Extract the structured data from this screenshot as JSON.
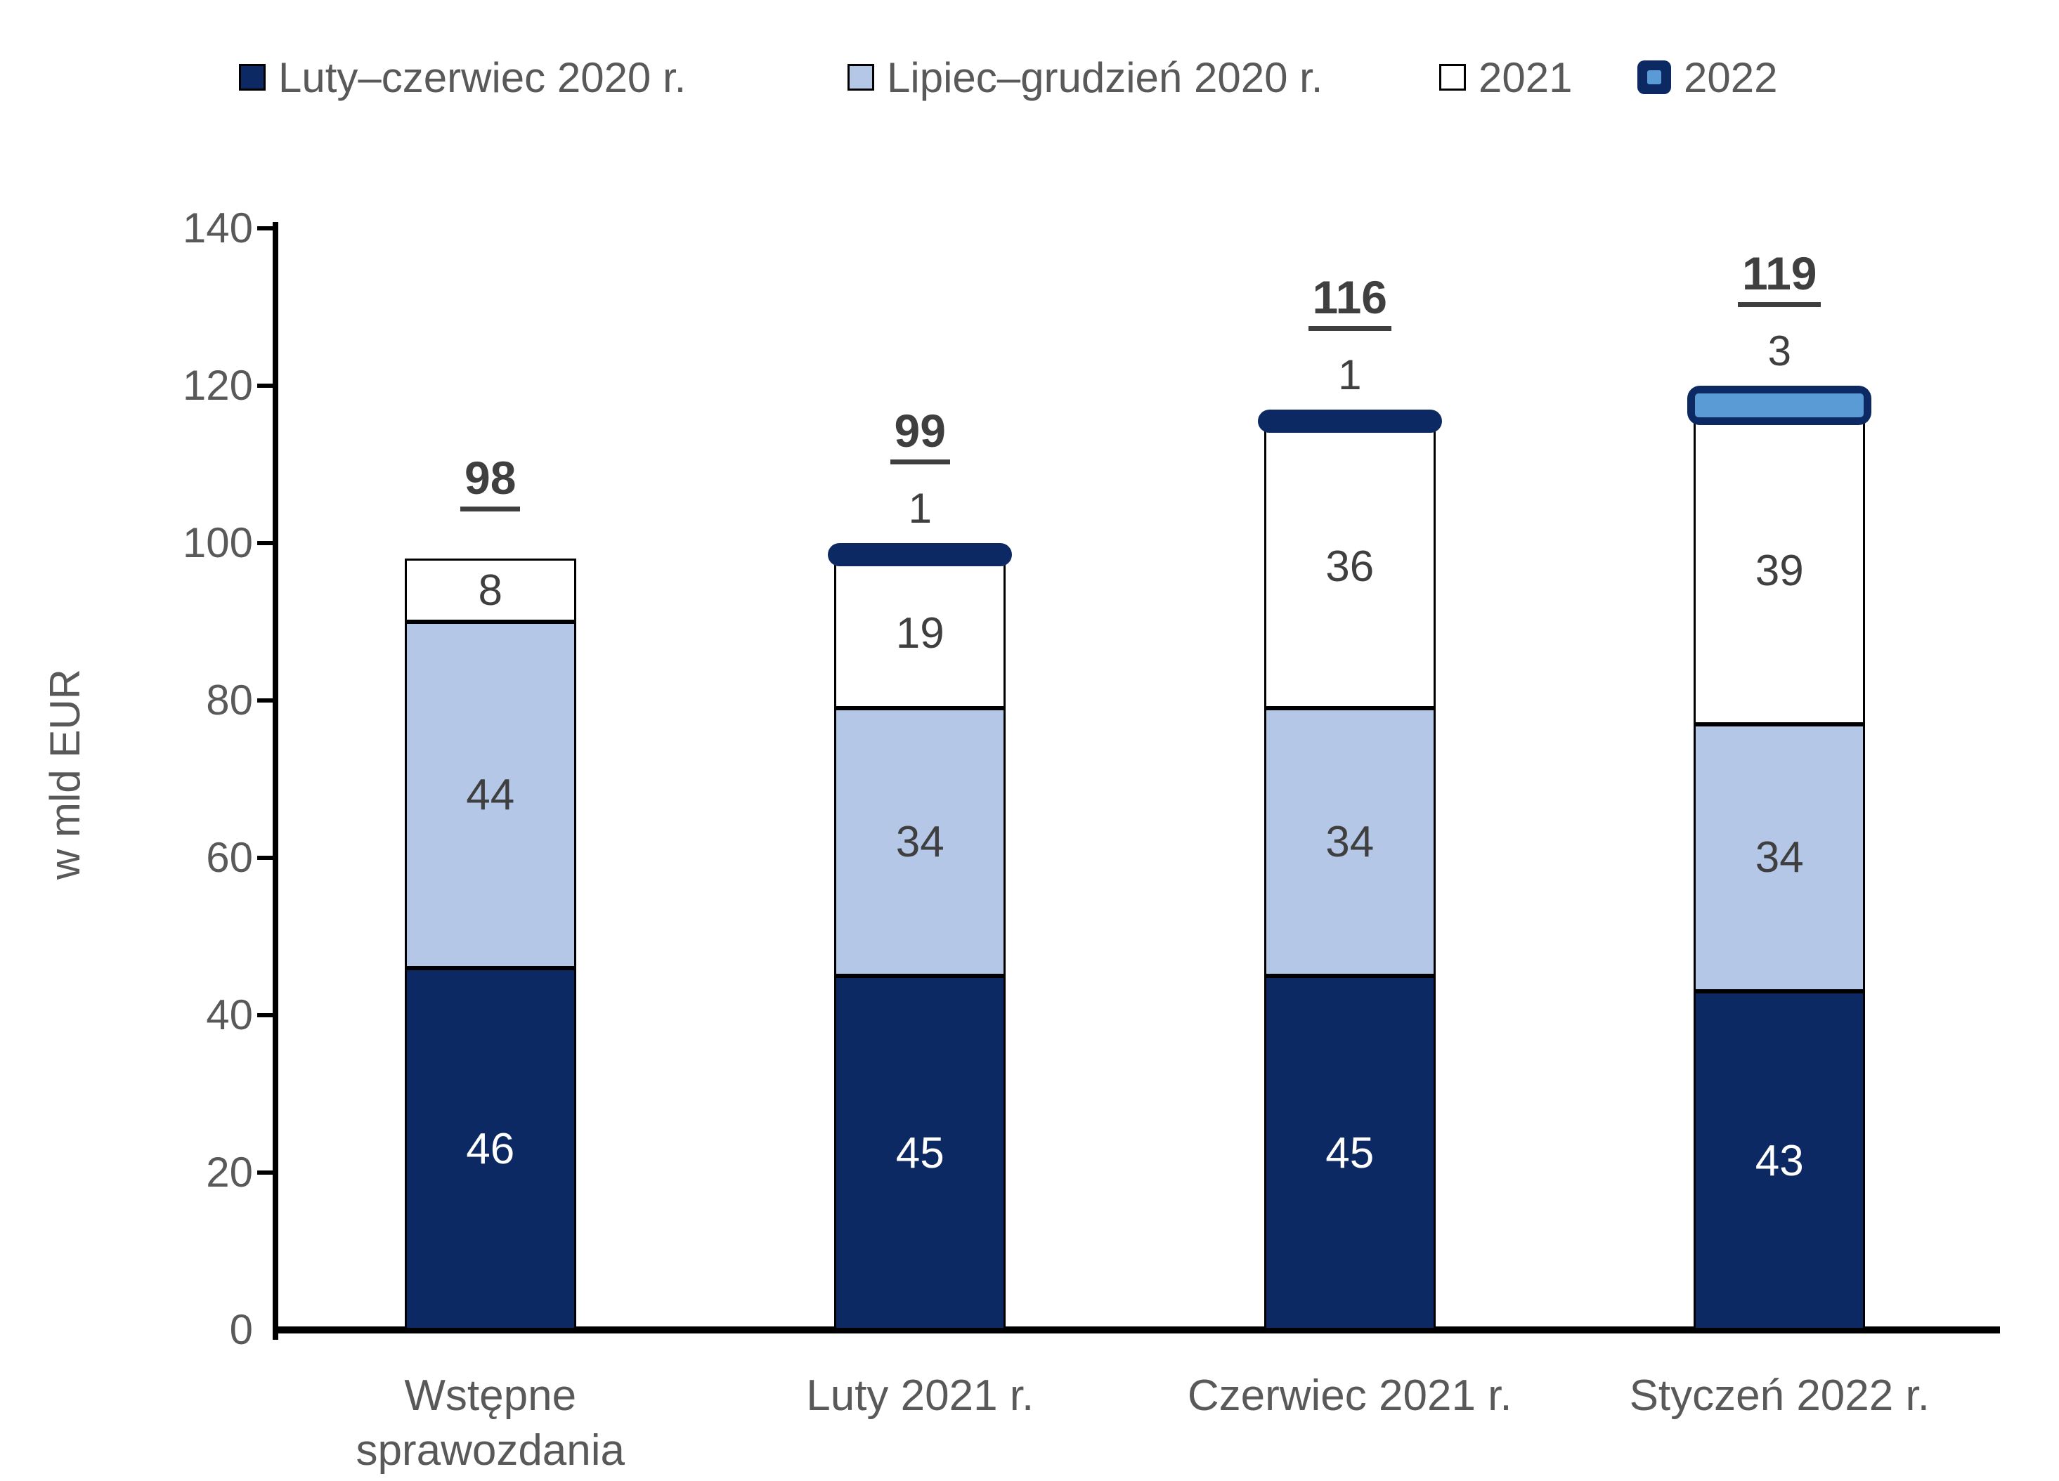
{
  "chart_data": {
    "type": "bar",
    "stacked": true,
    "title": "",
    "ylabel": "w mld EUR",
    "ylim": [
      0,
      140
    ],
    "ytick_step": 20,
    "yticks": [
      0,
      20,
      40,
      60,
      80,
      100,
      120,
      140
    ],
    "grid": false,
    "legend_position": "top",
    "categories": [
      "Wstępne\nsprawozdania",
      "Luty 2021 r.",
      "Czerwiec 2021 r.",
      "Styczeń 2022 r."
    ],
    "series": [
      {
        "name": "Luty–czerwiec 2020 r.",
        "color": "#0D2963",
        "text_color": "#FFFFFF",
        "values": [
          46,
          45,
          45,
          43
        ]
      },
      {
        "name": "Lipiec–grudzień 2020 r.",
        "color": "#B4C7E7",
        "text_color": "#3F3F3F",
        "values": [
          44,
          34,
          34,
          34
        ]
      },
      {
        "name": "2021",
        "color": "#FFFFFF",
        "text_color": "#3F3F3F",
        "values": [
          8,
          19,
          36,
          39
        ]
      },
      {
        "name": "2022",
        "color": "#5B9BD5",
        "border_color": "#0D2963",
        "text_color": "#3F3F3F",
        "style": "capsule",
        "values": [
          null,
          1,
          1,
          3
        ]
      }
    ],
    "totals": [
      98,
      99,
      116,
      119
    ]
  },
  "colors": {
    "axis": "#000000",
    "tick_label": "#595959",
    "value_label_dark": "#3F3F3F",
    "value_label_light": "#FFFFFF",
    "total_label": "#3F3F3F",
    "navy": "#0D2963",
    "light_blue": "#B4C7E7",
    "medium_blue": "#5B9BD5"
  }
}
